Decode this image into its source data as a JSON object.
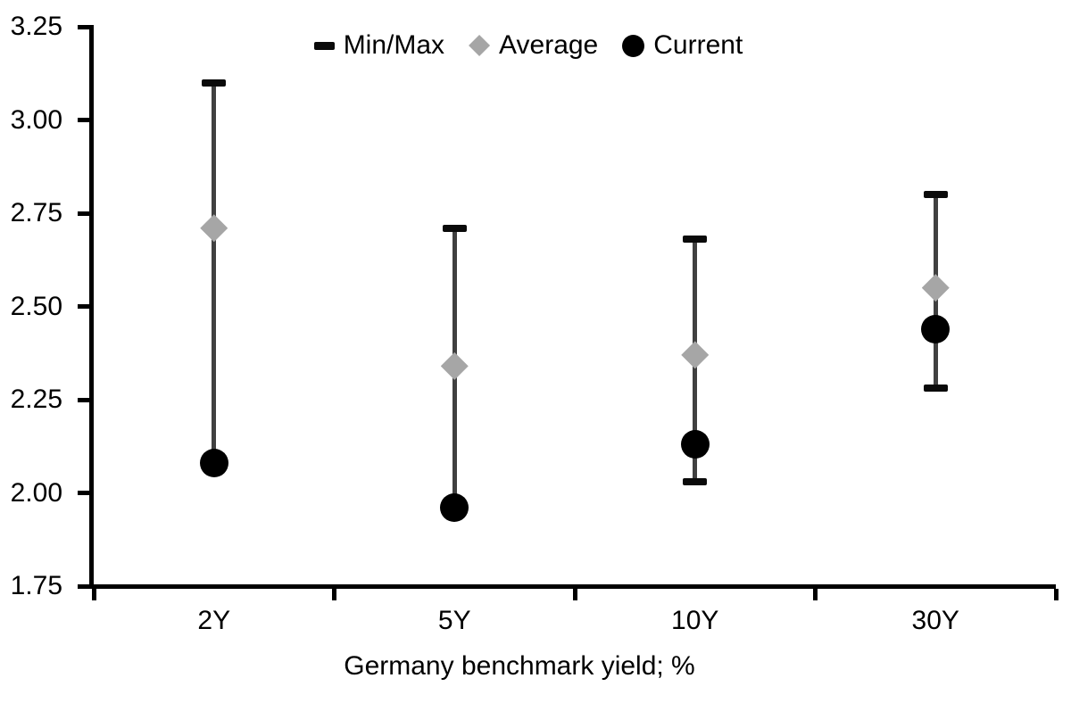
{
  "chart_data": {
    "type": "scatter",
    "subtype": "min-max-range-with-markers",
    "title": "Germany benchmark yield; %",
    "categories": [
      "2Y",
      "5Y",
      "10Y",
      "30Y"
    ],
    "series": [
      {
        "name": "Min/Max",
        "marker": "dash-cap",
        "max": [
          3.1,
          2.71,
          2.68,
          2.8
        ],
        "min": [
          2.08,
          1.96,
          2.03,
          2.28
        ]
      },
      {
        "name": "Average",
        "marker": "diamond",
        "values": [
          2.71,
          2.34,
          2.37,
          2.55
        ]
      },
      {
        "name": "Current",
        "marker": "circle",
        "values": [
          2.08,
          1.96,
          2.13,
          2.44
        ]
      }
    ],
    "ylim": [
      1.75,
      3.25
    ],
    "yticks": [
      3.25,
      3.0,
      2.75,
      2.5,
      2.25,
      2.0,
      1.75
    ],
    "ytick_labels": [
      "3.25",
      "3.00",
      "2.75",
      "2.50",
      "2.25",
      "2.00",
      "1.75"
    ],
    "grid": false,
    "legend": {
      "position": "top-center",
      "entries": [
        "Min/Max",
        "Average",
        "Current"
      ]
    },
    "colors": {
      "minmax_cap": "#0a0a0a",
      "whisker_line": "#404040",
      "average_marker": "#a6a6a6",
      "current_marker": "#000000",
      "axis": "#000000",
      "text": "#000000",
      "background": "#ffffff"
    }
  }
}
